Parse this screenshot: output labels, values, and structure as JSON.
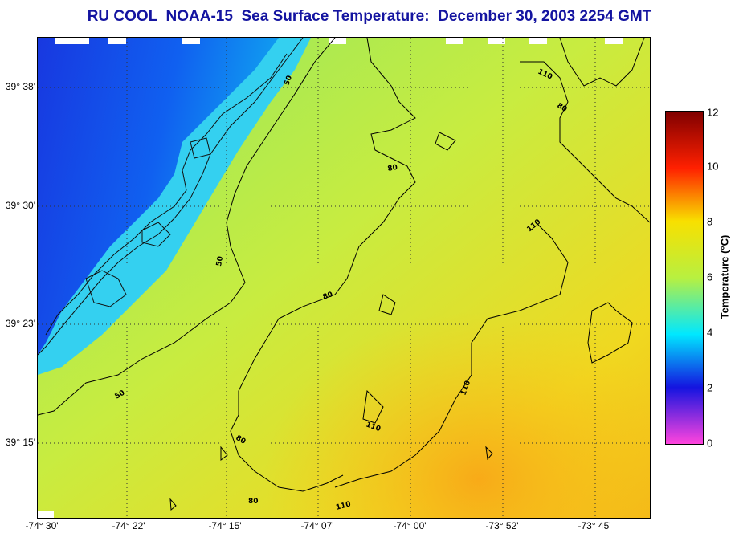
{
  "title": "RU COOL  NOAA-15  Sea Surface Temperature:  December 30, 2003 2254 GMT",
  "map": {
    "lat_labels": [
      "39° 38'",
      "39° 30'",
      "39° 23'",
      "39° 15'"
    ],
    "lon_labels": [
      "-74° 30'",
      "-74° 22'",
      "-74° 15'",
      "-74° 07'",
      "-74° 00'",
      "-73° 52'",
      "-73° 45'"
    ],
    "contour_levels": [
      "50",
      "80",
      "110"
    ],
    "contour_colors": {
      "line": "#000000",
      "coastline": "#000000"
    }
  },
  "colorbar": {
    "title": "Temperature (°C)",
    "ticks": [
      "12",
      "10",
      "8",
      "6",
      "4",
      "2",
      "0"
    ],
    "range": [
      0,
      12
    ],
    "colors": [
      "#ff44dd",
      "#1414e0",
      "#00e8ff",
      "#b8f040",
      "#f8e000",
      "#ff2000",
      "#800000"
    ]
  }
}
